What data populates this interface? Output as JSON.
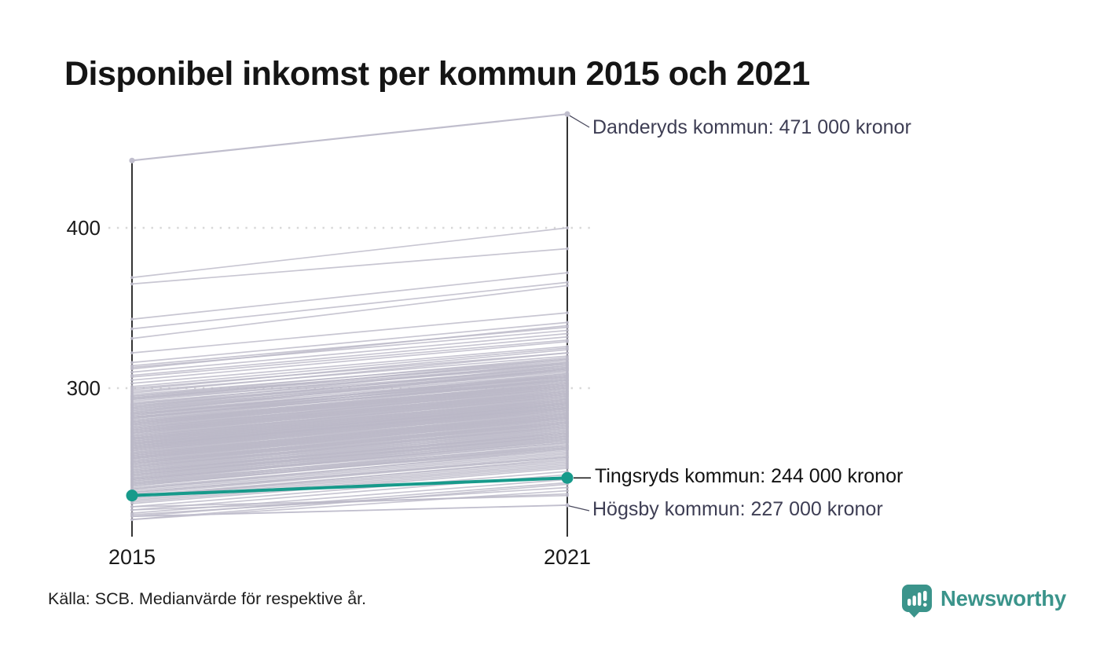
{
  "title": "Disponibel inkomst per kommun 2015 och 2021",
  "source": "Källa: SCB. Medianvärde för respektive år.",
  "brand": {
    "name": "Newsworthy",
    "color": "#3b948b"
  },
  "colors": {
    "highlight": "#179a8b",
    "background_line": "#bab8c7",
    "annotation_gray_line": "#c0becd",
    "annotation_text_dark": "#3e3e54",
    "annotation_text_black": "#121212",
    "axis": "#000000",
    "grid": "#d8d8d8"
  },
  "chart_data": {
    "type": "line",
    "subtype": "slopegraph",
    "x_categories": [
      "2015",
      "2021"
    ],
    "x_labels": {
      "left": "2015",
      "right": "2021"
    },
    "y_tick_labels": [
      "400",
      "300"
    ],
    "y_ticks": [
      400,
      300
    ],
    "y_domain": [
      215,
      480
    ],
    "unit_note": "values in thousands of kronor (tusen kronor)",
    "annotations": [
      {
        "series": "Danderyds kommun",
        "label": "Danderyds kommun: 471 000 kronor",
        "values": [
          442,
          471
        ],
        "emphasis": false
      },
      {
        "series": "Tingsryds kommun",
        "label": "Tingsryds kommun: 244 000 kronor",
        "values": [
          233,
          244
        ],
        "emphasis": true
      },
      {
        "series": "Högsby kommun",
        "label": "Högsby kommun: 227 000 kronor",
        "values": [
          220,
          227
        ],
        "emphasis": false
      }
    ],
    "background_pairs": [
      [
        369,
        400
      ],
      [
        365,
        387
      ],
      [
        343,
        372
      ],
      [
        337,
        366
      ],
      [
        331,
        364
      ],
      [
        322,
        347
      ],
      [
        316,
        341
      ],
      [
        314,
        338
      ],
      [
        313,
        336
      ],
      [
        312,
        339
      ],
      [
        310,
        334
      ],
      [
        308,
        332
      ],
      [
        307,
        330
      ],
      [
        305,
        329
      ],
      [
        303,
        326
      ],
      [
        301,
        325
      ],
      [
        300,
        322
      ],
      [
        299,
        324
      ],
      [
        298,
        320
      ],
      [
        297,
        322
      ],
      [
        296,
        318
      ],
      [
        295,
        319
      ],
      [
        295,
        316
      ],
      [
        294,
        317
      ],
      [
        293,
        314
      ],
      [
        293,
        318
      ],
      [
        292,
        315
      ],
      [
        291,
        313
      ],
      [
        290,
        316
      ],
      [
        290,
        312
      ],
      [
        294,
        315
      ],
      [
        289,
        313
      ],
      [
        288,
        310
      ],
      [
        288,
        314
      ],
      [
        287,
        309
      ],
      [
        286,
        311
      ],
      [
        286,
        308
      ],
      [
        285,
        312
      ],
      [
        285,
        307
      ],
      [
        289,
        311
      ],
      [
        287,
        312
      ],
      [
        284,
        308
      ],
      [
        284,
        305
      ],
      [
        283,
        309
      ],
      [
        283,
        306
      ],
      [
        282,
        307
      ],
      [
        282,
        304
      ],
      [
        281,
        308
      ],
      [
        281,
        305
      ],
      [
        280,
        306
      ],
      [
        280,
        303
      ],
      [
        284,
        307
      ],
      [
        282,
        305
      ],
      [
        279,
        305
      ],
      [
        279,
        302
      ],
      [
        278,
        304
      ],
      [
        278,
        301
      ],
      [
        277,
        303
      ],
      [
        277,
        300
      ],
      [
        276,
        302
      ],
      [
        276,
        299
      ],
      [
        275,
        301
      ],
      [
        275,
        298
      ],
      [
        279,
        303
      ],
      [
        277,
        301
      ],
      [
        275,
        300
      ],
      [
        278,
        302
      ],
      [
        274,
        300
      ],
      [
        274,
        297
      ],
      [
        273,
        299
      ],
      [
        273,
        296
      ],
      [
        272,
        298
      ],
      [
        272,
        295
      ],
      [
        271,
        297
      ],
      [
        271,
        294
      ],
      [
        270,
        296
      ],
      [
        270,
        293
      ],
      [
        274,
        298
      ],
      [
        272,
        296
      ],
      [
        270,
        295
      ],
      [
        273,
        297
      ],
      [
        269,
        295
      ],
      [
        269,
        292
      ],
      [
        268,
        294
      ],
      [
        268,
        291
      ],
      [
        267,
        293
      ],
      [
        267,
        290
      ],
      [
        266,
        292
      ],
      [
        266,
        289
      ],
      [
        265,
        291
      ],
      [
        265,
        288
      ],
      [
        269,
        293
      ],
      [
        267,
        291
      ],
      [
        265,
        290
      ],
      [
        268,
        292
      ],
      [
        266,
        290
      ],
      [
        264,
        289
      ],
      [
        264,
        290
      ],
      [
        264,
        287
      ],
      [
        263,
        289
      ],
      [
        263,
        286
      ],
      [
        262,
        288
      ],
      [
        262,
        285
      ],
      [
        261,
        287
      ],
      [
        261,
        284
      ],
      [
        260,
        286
      ],
      [
        260,
        283
      ],
      [
        263,
        288
      ],
      [
        261,
        286
      ],
      [
        264,
        288
      ],
      [
        262,
        287
      ],
      [
        259,
        285
      ],
      [
        259,
        282
      ],
      [
        258,
        284
      ],
      [
        258,
        281
      ],
      [
        257,
        283
      ],
      [
        257,
        280
      ],
      [
        256,
        282
      ],
      [
        256,
        279
      ],
      [
        255,
        281
      ],
      [
        255,
        278
      ],
      [
        258,
        283
      ],
      [
        256,
        281
      ],
      [
        259,
        284
      ],
      [
        257,
        282
      ],
      [
        254,
        280
      ],
      [
        254,
        277
      ],
      [
        253,
        279
      ],
      [
        253,
        276
      ],
      [
        252,
        278
      ],
      [
        252,
        275
      ],
      [
        251,
        277
      ],
      [
        251,
        274
      ],
      [
        250,
        276
      ],
      [
        250,
        273
      ],
      [
        253,
        278
      ],
      [
        251,
        276
      ],
      [
        254,
        279
      ],
      [
        249,
        275
      ],
      [
        249,
        272
      ],
      [
        248,
        274
      ],
      [
        248,
        271
      ],
      [
        247,
        273
      ],
      [
        247,
        270
      ],
      [
        246,
        272
      ],
      [
        246,
        269
      ],
      [
        245,
        271
      ],
      [
        245,
        268
      ],
      [
        248,
        272
      ],
      [
        246,
        270
      ],
      [
        244,
        270
      ],
      [
        244,
        267
      ],
      [
        243,
        269
      ],
      [
        243,
        266
      ],
      [
        242,
        268
      ],
      [
        242,
        264
      ],
      [
        241,
        266
      ],
      [
        241,
        263
      ],
      [
        240,
        265
      ],
      [
        240,
        262
      ],
      [
        243,
        267
      ],
      [
        239,
        263
      ],
      [
        238,
        261
      ],
      [
        237,
        262
      ],
      [
        236,
        259
      ],
      [
        235,
        258
      ],
      [
        239,
        264
      ],
      [
        237,
        260
      ],
      [
        235,
        257
      ],
      [
        234,
        257
      ],
      [
        233,
        255
      ],
      [
        232,
        256
      ],
      [
        231,
        253
      ],
      [
        230,
        252
      ],
      [
        229,
        251
      ],
      [
        228,
        250
      ],
      [
        232,
        254
      ],
      [
        226,
        248
      ],
      [
        224,
        246
      ],
      [
        222,
        243
      ],
      [
        220,
        241
      ],
      [
        218,
        240
      ],
      [
        218,
        236
      ],
      [
        221,
        238
      ],
      [
        224,
        234
      ],
      [
        226,
        233
      ]
    ]
  }
}
